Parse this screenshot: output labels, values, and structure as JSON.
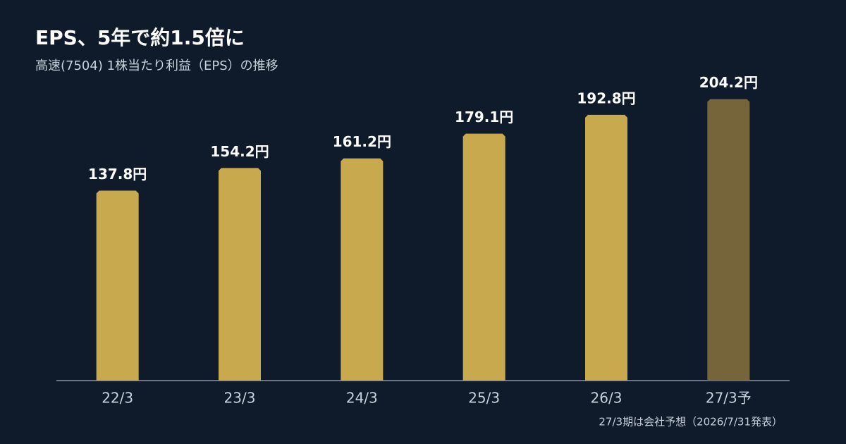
{
  "chart_data": {
    "type": "bar",
    "title": "EPS、5年で約1.5倍に",
    "subtitle": "高速(7504) 1株当たり利益（EPS）の推移",
    "categories": [
      "22/3",
      "23/3",
      "24/3",
      "25/3",
      "26/3",
      "27/3予"
    ],
    "values": [
      137.8,
      154.2,
      161.2,
      179.1,
      192.8,
      204.2
    ],
    "value_labels": [
      "137.8円",
      "154.2円",
      "161.2円",
      "179.1円",
      "192.8円",
      "204.2円"
    ],
    "colors": [
      "#c9a94e",
      "#c9a94e",
      "#c9a94e",
      "#c9a94e",
      "#c9a94e",
      "#76653a"
    ],
    "ylim": [
      0,
      250
    ],
    "note": "27/3期は会社予想（2026/7/31発表）"
  }
}
